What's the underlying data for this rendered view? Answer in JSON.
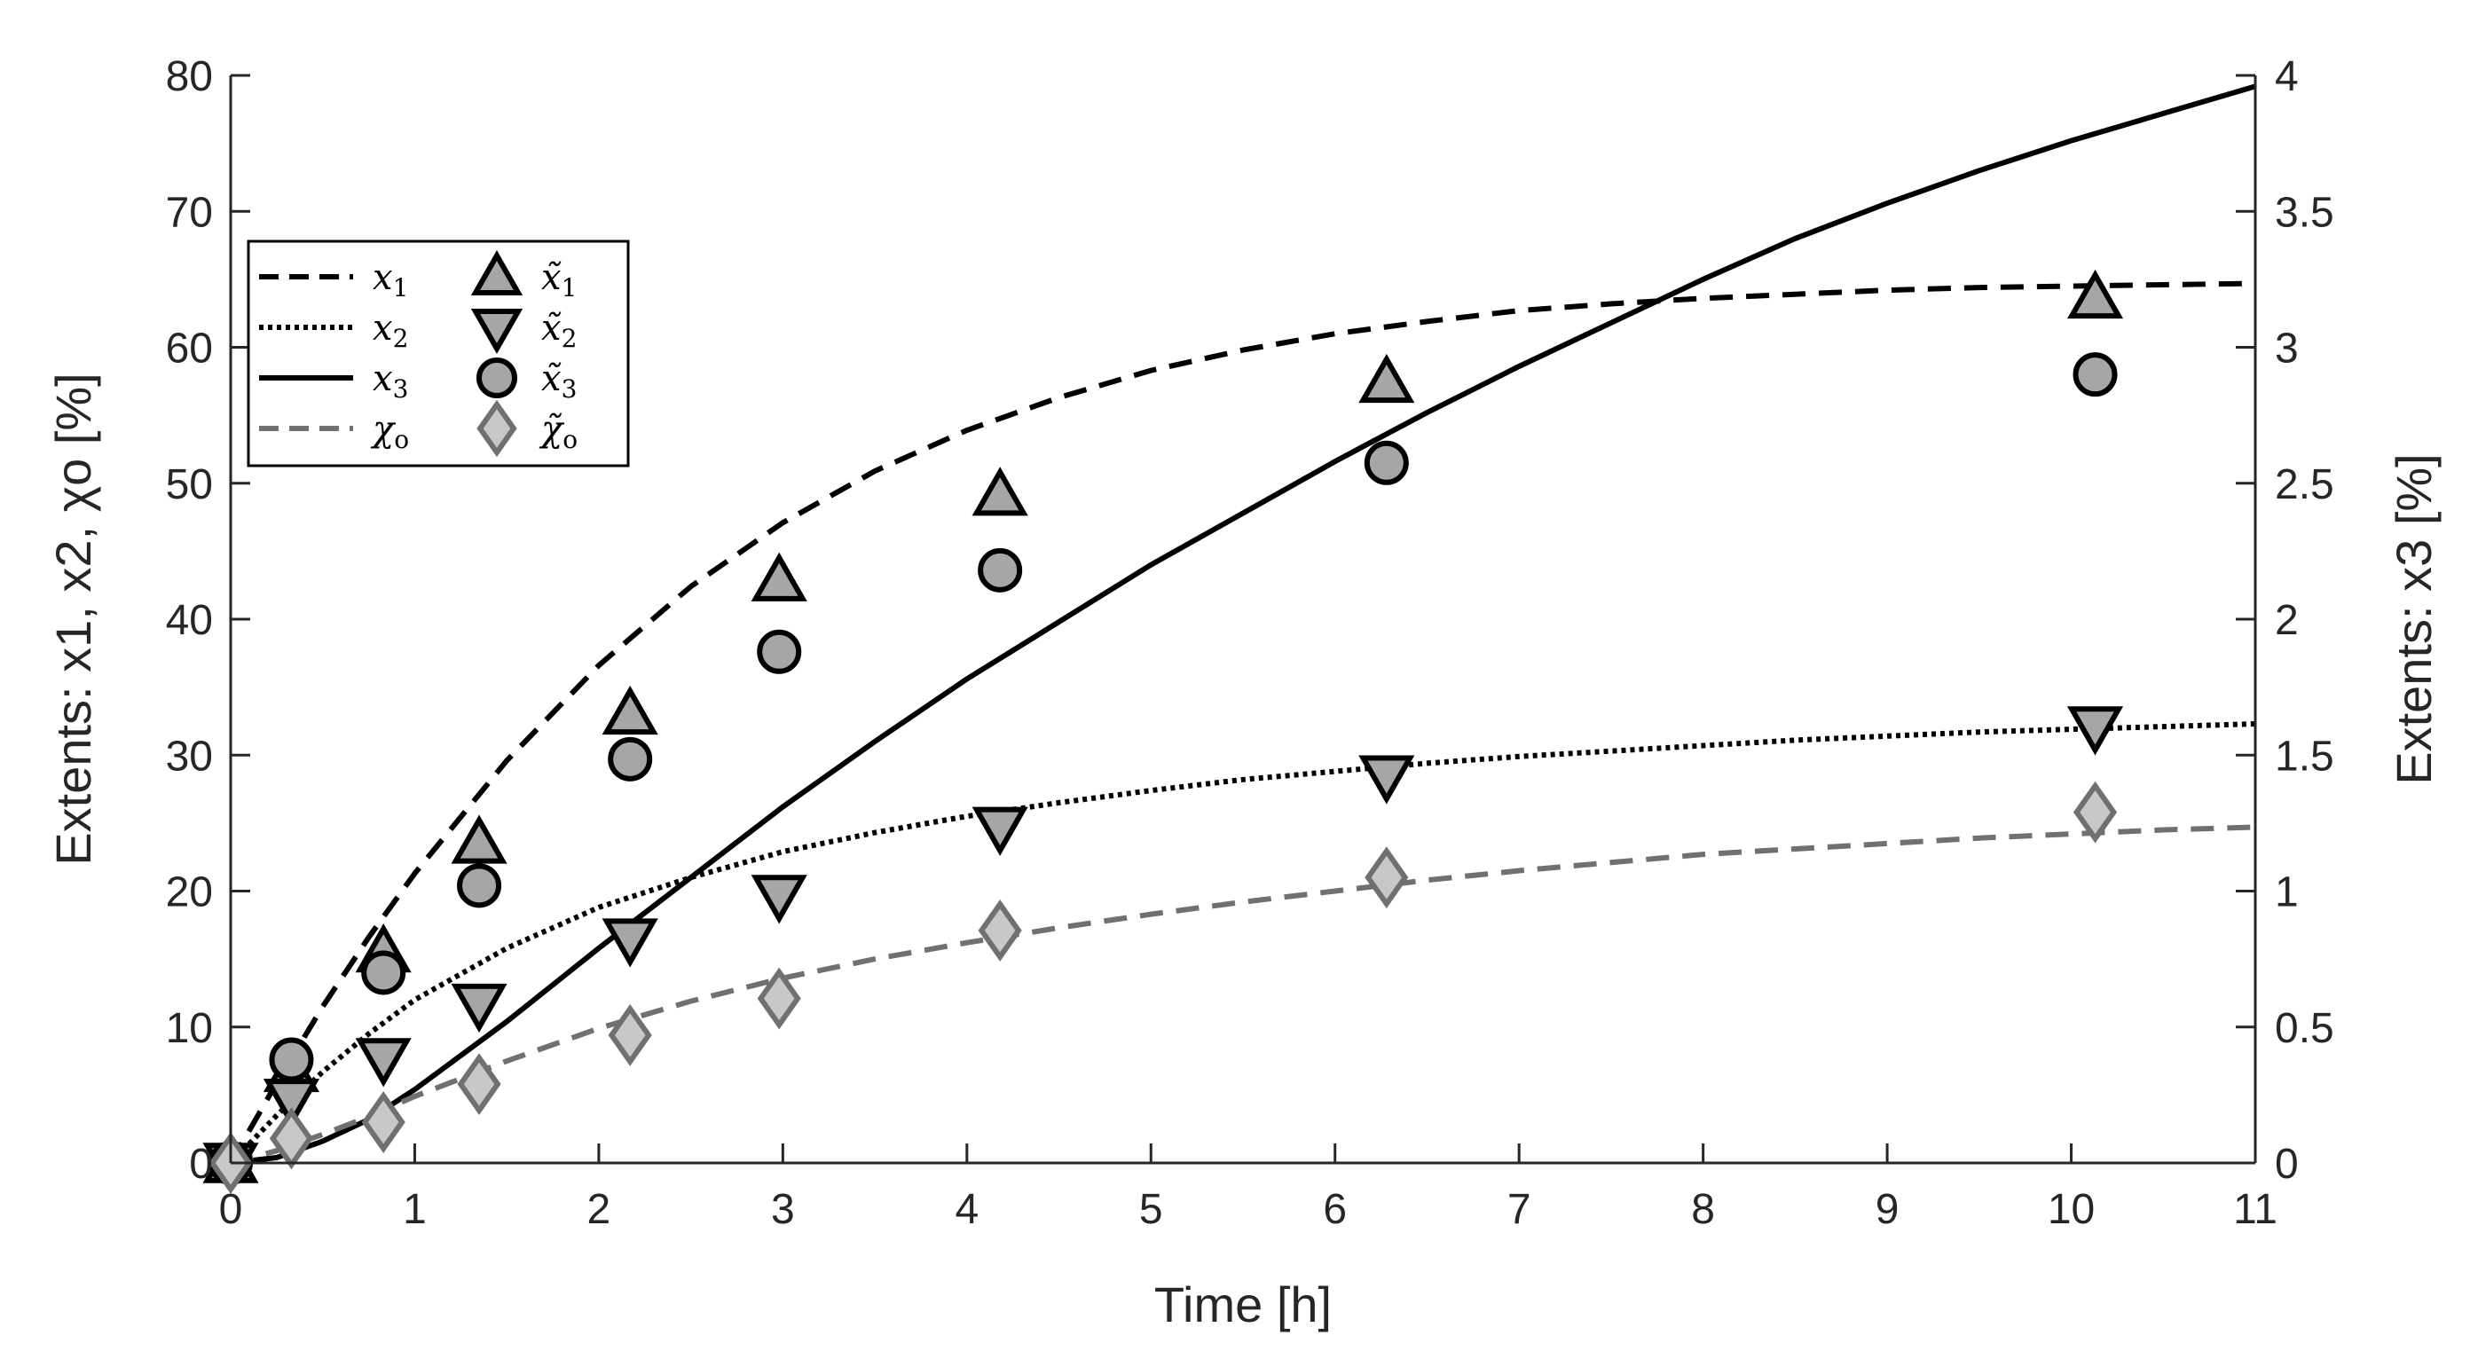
{
  "chart_data": {
    "type": "line",
    "title": "",
    "xlabel": "Time [h]",
    "ylabel_left": "Extents: x1, x2, χo [%]",
    "ylabel_right": "Extents: x3 [%]",
    "xlim": [
      0,
      11
    ],
    "ylim_left": [
      0,
      80
    ],
    "ylim_right": [
      0,
      4
    ],
    "xticks": [
      0,
      1,
      2,
      3,
      4,
      5,
      6,
      7,
      8,
      9,
      10,
      11
    ],
    "xtick_labels": [
      "0",
      "1",
      "2",
      "3",
      "4",
      "5",
      "6",
      "7",
      "8",
      "9",
      "10",
      "11"
    ],
    "yticks_left": [
      0,
      10,
      20,
      30,
      40,
      50,
      60,
      70,
      80
    ],
    "ytick_labels_left": [
      "0",
      "10",
      "20",
      "30",
      "40",
      "50",
      "60",
      "70",
      "80"
    ],
    "yticks_right": [
      0,
      0.5,
      1,
      1.5,
      2,
      2.5,
      3,
      3.5,
      4
    ],
    "ytick_labels_right": [
      "0",
      "0.5",
      "1",
      "1.5",
      "2",
      "2.5",
      "3",
      "3.5",
      "4"
    ],
    "grid": false,
    "legend_position": "upper-left",
    "series": [
      {
        "name": "x1",
        "legend_label": "x",
        "legend_sub": "1",
        "kind": "line",
        "dash": "dashed",
        "color": "#000000",
        "axis": "left",
        "x": [
          0,
          0.25,
          0.5,
          0.75,
          1,
          1.5,
          2,
          2.5,
          3,
          3.5,
          4,
          4.5,
          5,
          5.5,
          6,
          6.5,
          7,
          7.5,
          8,
          8.5,
          9,
          9.5,
          10,
          10.5,
          11
        ],
        "y": [
          0,
          5.9,
          11.5,
          16.6,
          21.3,
          29.6,
          36.6,
          42.4,
          47.1,
          50.9,
          53.9,
          56.3,
          58.3,
          59.8,
          61.0,
          61.9,
          62.7,
          63.2,
          63.6,
          63.9,
          64.2,
          64.4,
          64.5,
          64.6,
          64.7
        ]
      },
      {
        "name": "x2",
        "legend_label": "x",
        "legend_sub": "2",
        "kind": "line",
        "dash": "dotted",
        "color": "#000000",
        "axis": "left",
        "x": [
          0,
          0.25,
          0.5,
          0.75,
          1,
          1.5,
          2,
          2.5,
          3,
          3.5,
          4,
          4.5,
          5,
          5.5,
          6,
          6.5,
          7,
          7.5,
          8,
          8.5,
          9,
          9.5,
          10,
          10.5,
          11
        ],
        "y": [
          0,
          3.5,
          6.7,
          9.5,
          12.0,
          15.8,
          18.8,
          21.0,
          22.9,
          24.3,
          25.5,
          26.5,
          27.4,
          28.2,
          28.8,
          29.4,
          29.9,
          30.3,
          30.7,
          31.1,
          31.4,
          31.7,
          31.9,
          32.1,
          32.3
        ]
      },
      {
        "name": "x3",
        "legend_label": "x",
        "legend_sub": "3",
        "kind": "line",
        "dash": "solid",
        "color": "#000000",
        "axis": "right",
        "x": [
          0,
          0.25,
          0.5,
          0.75,
          1,
          1.5,
          2,
          2.5,
          3,
          3.5,
          4,
          4.5,
          5,
          5.5,
          6,
          6.5,
          7,
          7.5,
          8,
          8.5,
          9,
          9.5,
          10,
          10.5,
          11
        ],
        "y": [
          0,
          0.02,
          0.08,
          0.16,
          0.27,
          0.52,
          0.79,
          1.05,
          1.31,
          1.55,
          1.78,
          1.99,
          2.2,
          2.39,
          2.58,
          2.76,
          2.93,
          3.09,
          3.25,
          3.4,
          3.53,
          3.65,
          3.76,
          3.86,
          3.96
        ]
      },
      {
        "name": "chi_o",
        "legend_label": "χ",
        "legend_sub": "o",
        "kind": "line",
        "dash": "dashed",
        "color": "#707070",
        "axis": "left",
        "x": [
          0,
          0.25,
          0.5,
          0.75,
          1,
          1.5,
          2,
          2.5,
          3,
          3.5,
          4,
          4.5,
          5,
          5.5,
          6,
          6.5,
          7,
          7.5,
          8,
          8.5,
          9,
          9.5,
          10,
          10.5,
          11
        ],
        "y": [
          0,
          0.9,
          2.1,
          3.4,
          4.9,
          7.5,
          9.9,
          11.9,
          13.6,
          15.0,
          16.2,
          17.3,
          18.3,
          19.2,
          20.0,
          20.8,
          21.5,
          22.1,
          22.7,
          23.1,
          23.5,
          23.9,
          24.2,
          24.5,
          24.7
        ]
      },
      {
        "name": "x1_meas",
        "legend_label": "x̃",
        "legend_sub": "1",
        "kind": "marker",
        "marker": "triangle-up",
        "color": "#a6a6a6",
        "stroke": "#000000",
        "axis": "left",
        "x": [
          0,
          0.33,
          0.83,
          1.35,
          2.17,
          2.98,
          4.18,
          6.28,
          10.13
        ],
        "y": [
          0,
          6.7,
          15.5,
          23.5,
          33.0,
          42.8,
          49.1,
          57.4,
          63.6
        ]
      },
      {
        "name": "x2_meas",
        "legend_label": "x̃",
        "legend_sub": "2",
        "kind": "marker",
        "marker": "triangle-down",
        "color": "#a6a6a6",
        "stroke": "#000000",
        "axis": "left",
        "x": [
          0,
          0.33,
          0.83,
          1.35,
          2.17,
          2.98,
          4.18,
          6.28,
          10.13
        ],
        "y": [
          0,
          4.7,
          7.7,
          11.7,
          16.5,
          19.7,
          24.7,
          28.5,
          32.1
        ]
      },
      {
        "name": "x3_meas",
        "legend_label": "x̃",
        "legend_sub": "3",
        "kind": "marker",
        "marker": "circle",
        "color": "#a6a6a6",
        "stroke": "#000000",
        "axis": "left",
        "x": [
          0,
          0.33,
          0.83,
          1.35,
          2.17,
          2.98,
          4.18,
          6.28,
          10.13
        ],
        "y": [
          0,
          7.6,
          14.0,
          20.4,
          29.7,
          37.6,
          43.6,
          51.5,
          58.0
        ]
      },
      {
        "name": "chi_o_meas",
        "legend_label": "χ̃",
        "legend_sub": "o",
        "kind": "marker",
        "marker": "diamond",
        "color": "#c8c8c8",
        "stroke": "#707070",
        "axis": "left",
        "x": [
          0,
          0.33,
          0.83,
          1.35,
          2.17,
          2.98,
          4.18,
          6.28,
          10.13
        ],
        "y": [
          0,
          1.8,
          3.0,
          5.8,
          9.4,
          12.1,
          17.1,
          21.0,
          25.8
        ]
      }
    ]
  }
}
